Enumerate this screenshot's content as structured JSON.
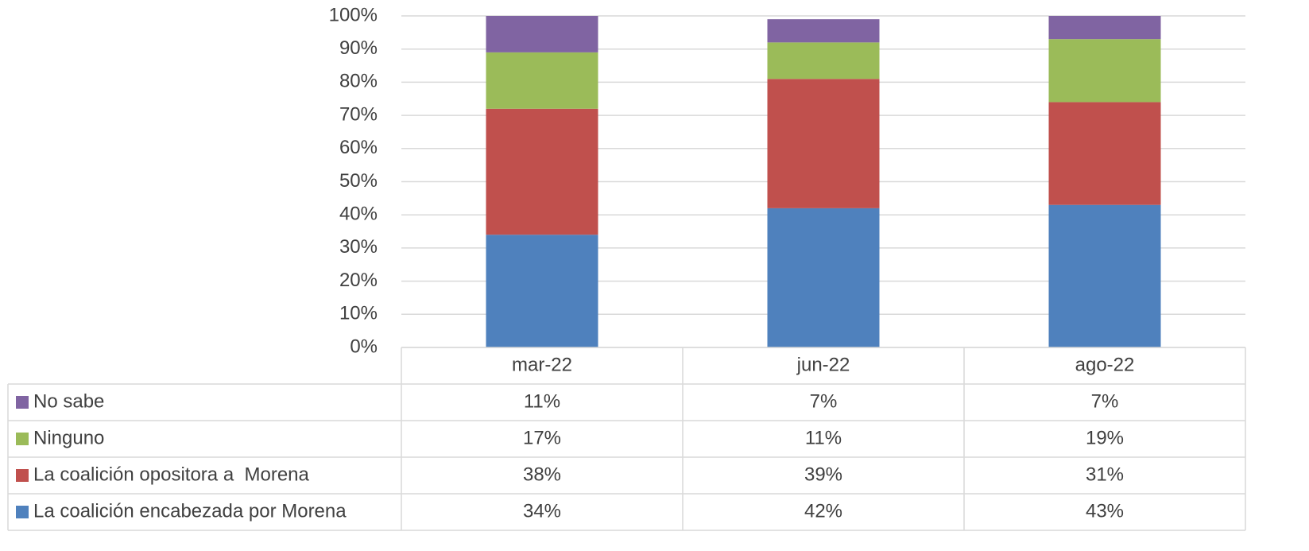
{
  "chart_data": {
    "type": "stacked_bar",
    "categories": [
      "mar-22",
      "jun-22",
      "ago-22"
    ],
    "series": [
      {
        "name": "La coalición encabezada por Morena",
        "color": "#4f81bd",
        "values": [
          34,
          42,
          43
        ],
        "value_labels": [
          "34%",
          "42%",
          "43%"
        ]
      },
      {
        "name": "La coalición opositora a  Morena",
        "color": "#c0504d",
        "values": [
          38,
          39,
          31
        ],
        "value_labels": [
          "38%",
          "39%",
          "31%"
        ]
      },
      {
        "name": "Ninguno",
        "color": "#9bbb59",
        "values": [
          17,
          11,
          19
        ],
        "value_labels": [
          "17%",
          "11%",
          "19%"
        ]
      },
      {
        "name": "No sabe",
        "color": "#8064a2",
        "values": [
          11,
          7,
          7
        ],
        "value_labels": [
          "11%",
          "7%",
          "7%"
        ]
      }
    ],
    "ylim": [
      0,
      100
    ],
    "yticks": [
      {
        "value": 0,
        "label": "0%"
      },
      {
        "value": 10,
        "label": "10%"
      },
      {
        "value": 20,
        "label": "20%"
      },
      {
        "value": 30,
        "label": "30%"
      },
      {
        "value": 40,
        "label": "40%"
      },
      {
        "value": 50,
        "label": "50%"
      },
      {
        "value": 60,
        "label": "60%"
      },
      {
        "value": 70,
        "label": "70%"
      },
      {
        "value": 80,
        "label": "80%"
      },
      {
        "value": 90,
        "label": "90%"
      },
      {
        "value": 100,
        "label": "100%"
      }
    ],
    "grid": true,
    "data_table": true
  }
}
